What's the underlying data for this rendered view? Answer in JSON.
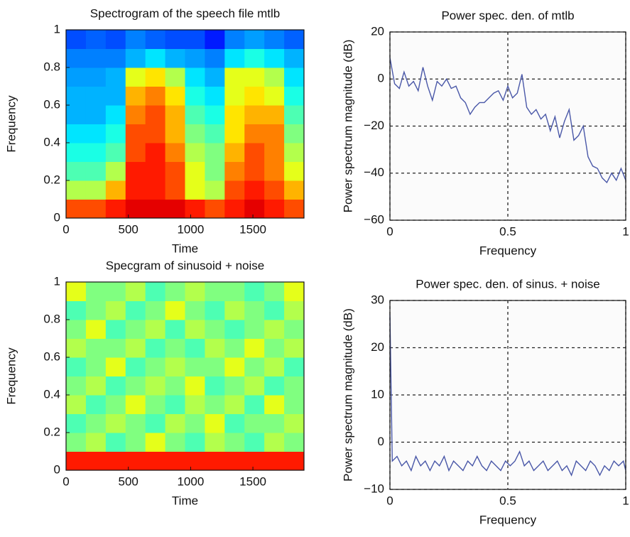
{
  "chart_data": [
    {
      "type": "heatmap",
      "title": "Spectrogram of the speech file mtlb",
      "xlabel": "Time",
      "ylabel": "Frequency",
      "xlim": [
        0,
        1910
      ],
      "ylim": [
        0,
        1
      ],
      "xticks": [
        0,
        500,
        1000,
        1500
      ],
      "yticks": [
        0,
        0.2,
        0.4,
        0.6,
        0.8,
        1
      ],
      "colormap": "jet",
      "z": [
        [
          0.8,
          0.8,
          0.85,
          0.9,
          0.9,
          0.9,
          0.85,
          0.8,
          0.85,
          0.9,
          0.85,
          0.8
        ],
        [
          0.55,
          0.55,
          0.7,
          0.85,
          0.85,
          0.8,
          0.6,
          0.55,
          0.8,
          0.85,
          0.8,
          0.7
        ],
        [
          0.45,
          0.45,
          0.55,
          0.85,
          0.85,
          0.8,
          0.6,
          0.5,
          0.75,
          0.8,
          0.75,
          0.6
        ],
        [
          0.4,
          0.4,
          0.45,
          0.8,
          0.85,
          0.75,
          0.55,
          0.5,
          0.7,
          0.8,
          0.75,
          0.55
        ],
        [
          0.35,
          0.35,
          0.4,
          0.8,
          0.8,
          0.7,
          0.5,
          0.45,
          0.65,
          0.75,
          0.75,
          0.5
        ],
        [
          0.3,
          0.3,
          0.35,
          0.75,
          0.8,
          0.7,
          0.45,
          0.4,
          0.65,
          0.7,
          0.7,
          0.45
        ],
        [
          0.3,
          0.3,
          0.3,
          0.7,
          0.75,
          0.65,
          0.4,
          0.35,
          0.6,
          0.65,
          0.6,
          0.4
        ],
        [
          0.28,
          0.28,
          0.3,
          0.6,
          0.65,
          0.55,
          0.35,
          0.3,
          0.6,
          0.6,
          0.55,
          0.35
        ],
        [
          0.25,
          0.25,
          0.25,
          0.3,
          0.35,
          0.3,
          0.28,
          0.25,
          0.35,
          0.4,
          0.35,
          0.3
        ],
        [
          0.2,
          0.22,
          0.2,
          0.25,
          0.22,
          0.2,
          0.2,
          0.15,
          0.25,
          0.28,
          0.25,
          0.22
        ]
      ]
    },
    {
      "type": "line",
      "title": "Power spec. den. of mtlb",
      "xlabel": "Frequency",
      "ylabel": "Power spectrum magnitude (dB)",
      "xlim": [
        0,
        1
      ],
      "ylim": [
        -60,
        20
      ],
      "xticks": [
        0,
        0.5,
        1
      ],
      "yticks": [
        {
          "value": -60,
          "label": "−60"
        },
        {
          "value": -40,
          "label": "−40"
        },
        {
          "value": -20,
          "label": "−20"
        },
        0,
        20
      ],
      "grid": true,
      "color": "#4a58a8",
      "x": [
        0,
        0.02,
        0.04,
        0.06,
        0.08,
        0.1,
        0.12,
        0.14,
        0.16,
        0.18,
        0.2,
        0.22,
        0.24,
        0.26,
        0.28,
        0.3,
        0.32,
        0.34,
        0.36,
        0.38,
        0.4,
        0.42,
        0.44,
        0.46,
        0.48,
        0.5,
        0.52,
        0.54,
        0.56,
        0.58,
        0.6,
        0.62,
        0.64,
        0.66,
        0.68,
        0.7,
        0.72,
        0.74,
        0.76,
        0.78,
        0.8,
        0.82,
        0.84,
        0.86,
        0.88,
        0.9,
        0.92,
        0.94,
        0.96,
        0.98,
        1
      ],
      "values": [
        9,
        -2,
        -4,
        3,
        -3,
        -1,
        -5,
        5,
        -3,
        -9,
        -1,
        -3,
        0,
        -4,
        -3,
        -8,
        -10,
        -15,
        -12,
        -10,
        -10,
        -8,
        -6,
        -5,
        -9,
        -3,
        -8,
        -6,
        2,
        -12,
        -15,
        -13,
        -17,
        -15,
        -22,
        -16,
        -25,
        -18,
        -13,
        -26,
        -24,
        -20,
        -33,
        -37,
        -38,
        -42,
        -44,
        -40,
        -43,
        -38,
        -43
      ]
    },
    {
      "type": "heatmap",
      "title": "Specgram of sinusoid + noise",
      "xlabel": "Time",
      "ylabel": "Frequency",
      "xlim": [
        0,
        1910
      ],
      "ylim": [
        0,
        1
      ],
      "xticks": [
        0,
        500,
        1000,
        1500
      ],
      "yticks": [
        0,
        0.2,
        0.4,
        0.6,
        0.8,
        1
      ],
      "colormap": "jet",
      "z": [
        [
          0.85,
          0.85,
          0.85,
          0.85,
          0.85,
          0.85,
          0.85,
          0.85,
          0.85,
          0.85,
          0.85,
          0.85
        ],
        [
          0.5,
          0.55,
          0.45,
          0.5,
          0.6,
          0.5,
          0.45,
          0.55,
          0.5,
          0.45,
          0.55,
          0.5
        ],
        [
          0.45,
          0.5,
          0.55,
          0.5,
          0.45,
          0.55,
          0.5,
          0.6,
          0.45,
          0.5,
          0.5,
          0.55
        ],
        [
          0.55,
          0.45,
          0.5,
          0.6,
          0.5,
          0.45,
          0.55,
          0.5,
          0.55,
          0.45,
          0.6,
          0.5
        ],
        [
          0.5,
          0.55,
          0.45,
          0.5,
          0.55,
          0.5,
          0.6,
          0.45,
          0.5,
          0.55,
          0.45,
          0.5
        ],
        [
          0.45,
          0.5,
          0.6,
          0.45,
          0.5,
          0.55,
          0.5,
          0.5,
          0.6,
          0.5,
          0.55,
          0.45
        ],
        [
          0.55,
          0.5,
          0.5,
          0.55,
          0.45,
          0.5,
          0.45,
          0.55,
          0.5,
          0.6,
          0.5,
          0.55
        ],
        [
          0.5,
          0.6,
          0.45,
          0.5,
          0.55,
          0.45,
          0.55,
          0.5,
          0.45,
          0.5,
          0.55,
          0.5
        ],
        [
          0.45,
          0.5,
          0.55,
          0.45,
          0.5,
          0.6,
          0.5,
          0.45,
          0.55,
          0.5,
          0.45,
          0.55
        ],
        [
          0.6,
          0.5,
          0.5,
          0.55,
          0.45,
          0.5,
          0.55,
          0.5,
          0.5,
          0.45,
          0.5,
          0.6
        ]
      ]
    },
    {
      "type": "line",
      "title": "Power spec. den. of sinus. + noise",
      "xlabel": "Frequency",
      "ylabel": "Power spectrum magnitude (dB)",
      "xlim": [
        0,
        1
      ],
      "ylim": [
        -10,
        30
      ],
      "xticks": [
        0,
        0.5,
        1
      ],
      "yticks": [
        {
          "value": -10,
          "label": "−10"
        },
        0,
        10,
        20,
        30
      ],
      "grid": true,
      "color": "#4a58a8",
      "x": [
        0,
        0.01,
        0.03,
        0.05,
        0.07,
        0.09,
        0.11,
        0.13,
        0.15,
        0.17,
        0.19,
        0.21,
        0.23,
        0.25,
        0.27,
        0.29,
        0.31,
        0.33,
        0.35,
        0.37,
        0.39,
        0.41,
        0.43,
        0.45,
        0.47,
        0.49,
        0.51,
        0.53,
        0.55,
        0.57,
        0.59,
        0.61,
        0.63,
        0.65,
        0.67,
        0.69,
        0.71,
        0.73,
        0.75,
        0.77,
        0.79,
        0.81,
        0.83,
        0.85,
        0.87,
        0.89,
        0.91,
        0.93,
        0.95,
        0.97,
        0.99,
        1
      ],
      "values": [
        27,
        -4,
        -3,
        -5,
        -4,
        -6,
        -3,
        -5,
        -4,
        -6,
        -4,
        -5,
        -3,
        -6,
        -4,
        -5,
        -6,
        -4,
        -5,
        -3,
        -5,
        -6,
        -4,
        -5,
        -6,
        -4,
        -5,
        -4,
        -2,
        -5,
        -4,
        -6,
        -5,
        -4,
        -6,
        -5,
        -4,
        -6,
        -5,
        -7,
        -4,
        -5,
        -6,
        -4,
        -5,
        -7,
        -5,
        -6,
        -4,
        -5,
        -4,
        -6
      ]
    }
  ]
}
